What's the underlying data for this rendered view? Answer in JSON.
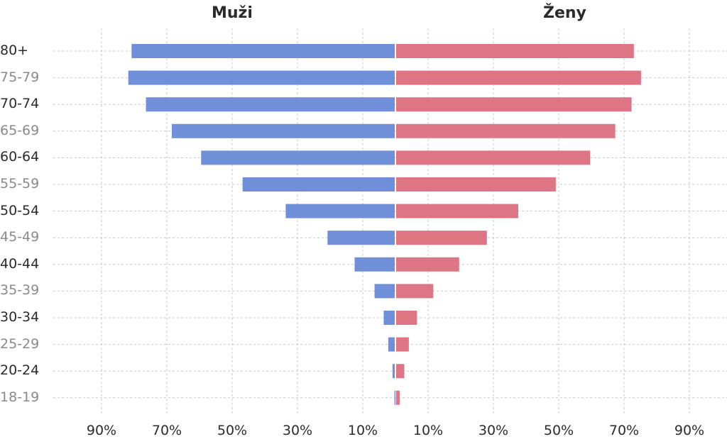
{
  "chart_data": {
    "type": "bar",
    "orientation": "horizontal",
    "layout": "population-pyramid",
    "left_header": "Muži",
    "right_header": "Ženy",
    "categories": [
      "80+",
      "75-79",
      "70-74",
      "65-69",
      "60-64",
      "55-59",
      "50-54",
      "45-49",
      "40-44",
      "35-39",
      "30-34",
      "25-29",
      "20-24",
      "18-19"
    ],
    "series": [
      {
        "name": "Muži",
        "side": "left",
        "color": "#6f8fd8",
        "values": [
          80.8,
          81.8,
          76.4,
          68.5,
          59.5,
          46.8,
          33.6,
          20.8,
          12.5,
          6.4,
          3.6,
          2.2,
          0.9,
          0.3
        ]
      },
      {
        "name": "Ženy",
        "side": "right",
        "color": "#de7585",
        "values": [
          73.0,
          75.2,
          72.3,
          67.3,
          59.6,
          49.1,
          37.6,
          28.0,
          19.5,
          11.6,
          6.6,
          4.1,
          2.7,
          1.3
        ]
      }
    ],
    "x_ticks_left": [
      "90%",
      "70%",
      "50%",
      "30%",
      "10%"
    ],
    "x_ticks_right": [
      "10%",
      "30%",
      "50%",
      "70%",
      "90%"
    ],
    "xlim": [
      -100,
      100
    ],
    "grid": true
  }
}
